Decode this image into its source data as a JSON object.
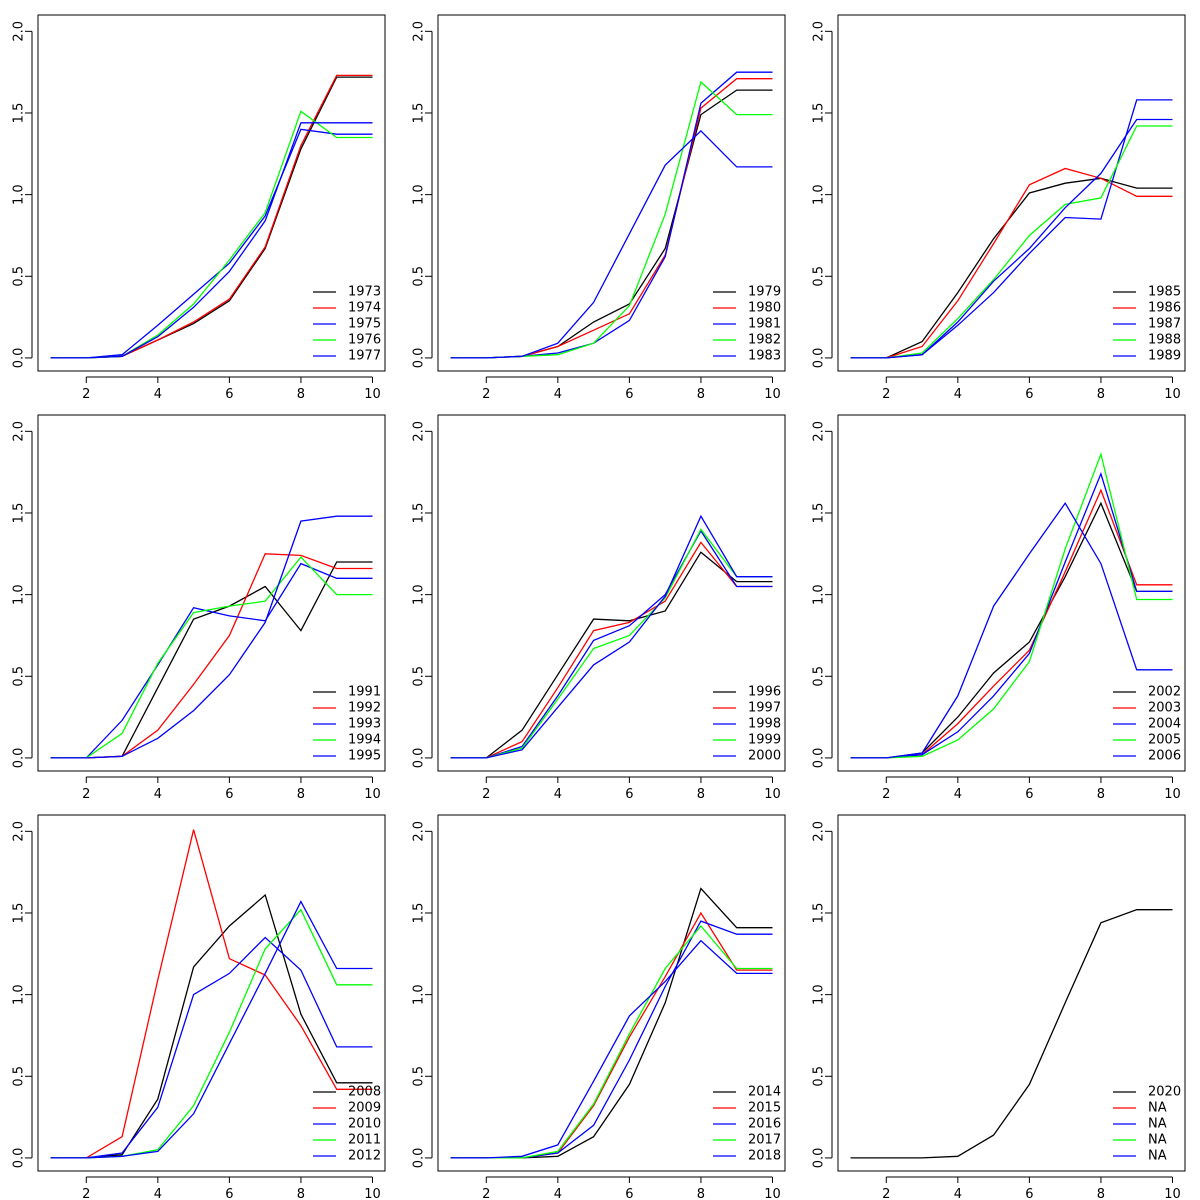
{
  "chart_data": [
    {
      "type": "line",
      "x": [
        1,
        2,
        3,
        4,
        5,
        6,
        7,
        8,
        9,
        10
      ],
      "xlim": [
        0.65,
        10.35
      ],
      "ylim": [
        -0.08,
        2.1
      ],
      "xticks": [
        2,
        4,
        6,
        8,
        10
      ],
      "yticks": [
        0.0,
        0.5,
        1.0,
        1.5,
        2.0
      ],
      "ytick_labels": [
        "0.0",
        "0.5",
        "1.0",
        "1.5",
        "2.0"
      ],
      "grid": false,
      "legend_position": "bottom-right",
      "series": [
        {
          "name": "1973",
          "color": "#000000",
          "values": [
            0,
            0,
            0.01,
            0.11,
            0.21,
            0.35,
            0.67,
            1.28,
            1.72,
            1.72
          ]
        },
        {
          "name": "1974",
          "color": "#ff0000",
          "values": [
            0,
            0,
            0.01,
            0.11,
            0.22,
            0.36,
            0.68,
            1.3,
            1.73,
            1.73
          ]
        },
        {
          "name": "1975",
          "color": "#0000ff",
          "values": [
            0,
            0,
            0.02,
            0.2,
            0.39,
            0.58,
            0.87,
            1.4,
            1.37,
            1.37
          ]
        },
        {
          "name": "1976",
          "color": "#00ff00",
          "values": [
            0,
            0,
            0.01,
            0.14,
            0.33,
            0.6,
            0.89,
            1.51,
            1.35,
            1.35
          ]
        },
        {
          "name": "1977",
          "color": "#0000ff",
          "values": [
            0,
            0,
            0.01,
            0.13,
            0.31,
            0.53,
            0.84,
            1.44,
            1.44,
            1.44
          ]
        }
      ]
    },
    {
      "type": "line",
      "x": [
        1,
        2,
        3,
        4,
        5,
        6,
        7,
        8,
        9,
        10
      ],
      "xlim": [
        0.65,
        10.35
      ],
      "ylim": [
        -0.08,
        2.1
      ],
      "xticks": [
        2,
        4,
        6,
        8,
        10
      ],
      "yticks": [
        0.0,
        0.5,
        1.0,
        1.5,
        2.0
      ],
      "ytick_labels": [
        "0.0",
        "0.5",
        "1.0",
        "1.5",
        "2.0"
      ],
      "grid": false,
      "legend_position": "bottom-right",
      "series": [
        {
          "name": "1979",
          "color": "#000000",
          "values": [
            0,
            0,
            0.01,
            0.07,
            0.22,
            0.33,
            0.67,
            1.49,
            1.64,
            1.64
          ]
        },
        {
          "name": "1980",
          "color": "#ff0000",
          "values": [
            0,
            0,
            0.01,
            0.07,
            0.17,
            0.27,
            0.63,
            1.53,
            1.71,
            1.71
          ]
        },
        {
          "name": "1981",
          "color": "#0000ff",
          "values": [
            0,
            0,
            0.01,
            0.03,
            0.09,
            0.23,
            0.62,
            1.56,
            1.75,
            1.75
          ]
        },
        {
          "name": "1982",
          "color": "#00ff00",
          "values": [
            0,
            0,
            0.01,
            0.02,
            0.09,
            0.32,
            0.88,
            1.69,
            1.49,
            1.49
          ]
        },
        {
          "name": "1983",
          "color": "#0000ff",
          "values": [
            0,
            0,
            0.01,
            0.09,
            0.34,
            0.76,
            1.18,
            1.39,
            1.17,
            1.17
          ]
        }
      ]
    },
    {
      "type": "line",
      "x": [
        1,
        2,
        3,
        4,
        5,
        6,
        7,
        8,
        9,
        10
      ],
      "xlim": [
        0.65,
        10.35
      ],
      "ylim": [
        -0.08,
        2.1
      ],
      "xticks": [
        2,
        4,
        6,
        8,
        10
      ],
      "yticks": [
        0.0,
        0.5,
        1.0,
        1.5,
        2.0
      ],
      "ytick_labels": [
        "0.0",
        "0.5",
        "1.0",
        "1.5",
        "2.0"
      ],
      "grid": false,
      "legend_position": "bottom-right",
      "series": [
        {
          "name": "1985",
          "color": "#000000",
          "values": [
            0,
            0,
            0.1,
            0.4,
            0.73,
            1.01,
            1.07,
            1.1,
            1.04,
            1.04
          ]
        },
        {
          "name": "1986",
          "color": "#ff0000",
          "values": [
            0,
            0,
            0.07,
            0.35,
            0.7,
            1.06,
            1.16,
            1.1,
            0.99,
            0.99
          ]
        },
        {
          "name": "1987",
          "color": "#0000ff",
          "values": [
            0,
            0,
            0.02,
            0.2,
            0.4,
            0.64,
            0.86,
            0.85,
            1.58,
            1.58
          ]
        },
        {
          "name": "1988",
          "color": "#00ff00",
          "values": [
            0,
            0,
            0.03,
            0.24,
            0.48,
            0.75,
            0.94,
            0.98,
            1.42,
            1.42
          ]
        },
        {
          "name": "1989",
          "color": "#0000ff",
          "values": [
            0,
            0,
            0.02,
            0.22,
            0.47,
            0.67,
            0.92,
            1.13,
            1.46,
            1.46
          ]
        }
      ]
    },
    {
      "type": "line",
      "x": [
        1,
        2,
        3,
        4,
        5,
        6,
        7,
        8,
        9,
        10
      ],
      "xlim": [
        0.65,
        10.35
      ],
      "ylim": [
        -0.08,
        2.1
      ],
      "xticks": [
        2,
        4,
        6,
        8,
        10
      ],
      "yticks": [
        0.0,
        0.5,
        1.0,
        1.5,
        2.0
      ],
      "ytick_labels": [
        "0.0",
        "0.5",
        "1.0",
        "1.5",
        "2.0"
      ],
      "grid": false,
      "legend_position": "bottom-right",
      "series": [
        {
          "name": "1991",
          "color": "#000000",
          "values": [
            0,
            0,
            0.01,
            0.43,
            0.85,
            0.93,
            1.05,
            0.78,
            1.2,
            1.2
          ]
        },
        {
          "name": "1992",
          "color": "#ff0000",
          "values": [
            0,
            0,
            0.01,
            0.17,
            0.45,
            0.75,
            1.25,
            1.24,
            1.16,
            1.16
          ]
        },
        {
          "name": "1993",
          "color": "#0000ff",
          "values": [
            0,
            0,
            0.23,
            0.57,
            0.92,
            0.87,
            0.84,
            1.19,
            1.1,
            1.1
          ]
        },
        {
          "name": "1994",
          "color": "#00ff00",
          "values": [
            0,
            0,
            0.15,
            0.58,
            0.89,
            0.93,
            0.96,
            1.23,
            1.0,
            1.0
          ]
        },
        {
          "name": "1995",
          "color": "#0000ff",
          "values": [
            0,
            0,
            0.01,
            0.12,
            0.29,
            0.51,
            0.83,
            1.45,
            1.48,
            1.48
          ]
        }
      ]
    },
    {
      "type": "line",
      "x": [
        1,
        2,
        3,
        4,
        5,
        6,
        7,
        8,
        9,
        10
      ],
      "xlim": [
        0.65,
        10.35
      ],
      "ylim": [
        -0.08,
        2.1
      ],
      "xticks": [
        2,
        4,
        6,
        8,
        10
      ],
      "yticks": [
        0.0,
        0.5,
        1.0,
        1.5,
        2.0
      ],
      "ytick_labels": [
        "0.0",
        "0.5",
        "1.0",
        "1.5",
        "2.0"
      ],
      "grid": false,
      "legend_position": "bottom-right",
      "series": [
        {
          "name": "1996",
          "color": "#000000",
          "values": [
            0,
            0,
            0.17,
            0.51,
            0.85,
            0.84,
            0.9,
            1.26,
            1.08,
            1.08
          ]
        },
        {
          "name": "1997",
          "color": "#ff0000",
          "values": [
            0,
            0,
            0.1,
            0.43,
            0.78,
            0.83,
            0.96,
            1.32,
            1.05,
            1.05
          ]
        },
        {
          "name": "1998",
          "color": "#0000ff",
          "values": [
            0,
            0,
            0.07,
            0.38,
            0.72,
            0.81,
            1.0,
            1.39,
            1.05,
            1.05
          ]
        },
        {
          "name": "1999",
          "color": "#00ff00",
          "values": [
            0,
            0,
            0.06,
            0.36,
            0.67,
            0.75,
            0.98,
            1.4,
            1.11,
            1.11
          ]
        },
        {
          "name": "2000",
          "color": "#0000ff",
          "values": [
            0,
            0,
            0.05,
            0.31,
            0.57,
            0.71,
            0.99,
            1.48,
            1.11,
            1.11
          ]
        }
      ]
    },
    {
      "type": "line",
      "x": [
        1,
        2,
        3,
        4,
        5,
        6,
        7,
        8,
        9,
        10
      ],
      "xlim": [
        0.65,
        10.35
      ],
      "ylim": [
        -0.08,
        2.1
      ],
      "xticks": [
        2,
        4,
        6,
        8,
        10
      ],
      "yticks": [
        0.0,
        0.5,
        1.0,
        1.5,
        2.0
      ],
      "ytick_labels": [
        "0.0",
        "0.5",
        "1.0",
        "1.5",
        "2.0"
      ],
      "grid": false,
      "legend_position": "bottom-right",
      "series": [
        {
          "name": "2002",
          "color": "#000000",
          "values": [
            0,
            0,
            0.03,
            0.25,
            0.52,
            0.71,
            1.11,
            1.56,
            1.02,
            1.02
          ]
        },
        {
          "name": "2003",
          "color": "#ff0000",
          "values": [
            0,
            0,
            0.02,
            0.21,
            0.44,
            0.66,
            1.14,
            1.64,
            1.06,
            1.06
          ]
        },
        {
          "name": "2004",
          "color": "#0000ff",
          "values": [
            0,
            0,
            0.02,
            0.16,
            0.38,
            0.64,
            1.2,
            1.74,
            1.02,
            1.02
          ]
        },
        {
          "name": "2005",
          "color": "#00ff00",
          "values": [
            0,
            0,
            0.01,
            0.11,
            0.3,
            0.59,
            1.28,
            1.86,
            0.97,
            0.97
          ]
        },
        {
          "name": "2006",
          "color": "#0000ff",
          "values": [
            0,
            0,
            0.03,
            0.38,
            0.93,
            1.25,
            1.56,
            1.19,
            0.54,
            0.54
          ]
        }
      ]
    },
    {
      "type": "line",
      "x": [
        1,
        2,
        3,
        4,
        5,
        6,
        7,
        8,
        9,
        10
      ],
      "xlim": [
        0.65,
        10.35
      ],
      "ylim": [
        -0.08,
        2.1
      ],
      "xticks": [
        2,
        4,
        6,
        8,
        10
      ],
      "yticks": [
        0.0,
        0.5,
        1.0,
        1.5,
        2.0
      ],
      "ytick_labels": [
        "0.0",
        "0.5",
        "1.0",
        "1.5",
        "2.0"
      ],
      "grid": false,
      "legend_position": "bottom-right",
      "series": [
        {
          "name": "2008",
          "color": "#000000",
          "values": [
            0,
            0,
            0.02,
            0.36,
            1.17,
            1.42,
            1.61,
            0.88,
            0.46,
            0.46
          ]
        },
        {
          "name": "2009",
          "color": "#ff0000",
          "values": [
            0,
            0,
            0.13,
            1.09,
            2.01,
            1.22,
            1.12,
            0.81,
            0.42,
            0.42
          ]
        },
        {
          "name": "2010",
          "color": "#0000ff",
          "values": [
            0,
            0,
            0.03,
            0.31,
            1.0,
            1.13,
            1.35,
            1.15,
            0.68,
            0.68
          ]
        },
        {
          "name": "2011",
          "color": "#00ff00",
          "values": [
            0,
            0,
            0.01,
            0.05,
            0.32,
            0.77,
            1.28,
            1.52,
            1.06,
            1.06
          ]
        },
        {
          "name": "2012",
          "color": "#0000ff",
          "values": [
            0,
            0,
            0.01,
            0.04,
            0.27,
            0.7,
            1.13,
            1.57,
            1.16,
            1.16
          ]
        }
      ]
    },
    {
      "type": "line",
      "x": [
        1,
        2,
        3,
        4,
        5,
        6,
        7,
        8,
        9,
        10
      ],
      "xlim": [
        0.65,
        10.35
      ],
      "ylim": [
        -0.08,
        2.1
      ],
      "xticks": [
        2,
        4,
        6,
        8,
        10
      ],
      "yticks": [
        0.0,
        0.5,
        1.0,
        1.5,
        2.0
      ],
      "ytick_labels": [
        "0.0",
        "0.5",
        "1.0",
        "1.5",
        "2.0"
      ],
      "grid": false,
      "legend_position": "bottom-right",
      "series": [
        {
          "name": "2014",
          "color": "#000000",
          "values": [
            0,
            0,
            0.0,
            0.01,
            0.13,
            0.45,
            0.95,
            1.65,
            1.41,
            1.41
          ]
        },
        {
          "name": "2015",
          "color": "#ff0000",
          "values": [
            0,
            0,
            0.0,
            0.03,
            0.32,
            0.74,
            1.11,
            1.5,
            1.15,
            1.15
          ]
        },
        {
          "name": "2016",
          "color": "#0000ff",
          "values": [
            0,
            0,
            0.0,
            0.03,
            0.2,
            0.6,
            1.05,
            1.45,
            1.37,
            1.37
          ]
        },
        {
          "name": "2017",
          "color": "#00ff00",
          "values": [
            0,
            0,
            0.0,
            0.04,
            0.33,
            0.76,
            1.16,
            1.42,
            1.16,
            1.16
          ]
        },
        {
          "name": "2018",
          "color": "#0000ff",
          "values": [
            0,
            0,
            0.01,
            0.08,
            0.47,
            0.87,
            1.08,
            1.33,
            1.13,
            1.13
          ]
        }
      ]
    },
    {
      "type": "line",
      "x": [
        1,
        2,
        3,
        4,
        5,
        6,
        7,
        8,
        9,
        10
      ],
      "xlim": [
        0.65,
        10.35
      ],
      "ylim": [
        -0.08,
        2.1
      ],
      "xticks": [
        2,
        4,
        6,
        8,
        10
      ],
      "yticks": [
        0.0,
        0.5,
        1.0,
        1.5,
        2.0
      ],
      "ytick_labels": [
        "0.0",
        "0.5",
        "1.0",
        "1.5",
        "2.0"
      ],
      "grid": false,
      "legend_position": "bottom-right",
      "series": [
        {
          "name": "2020",
          "color": "#000000",
          "values": [
            0,
            0,
            0.0,
            0.01,
            0.14,
            0.45,
            0.95,
            1.44,
            1.52,
            1.52
          ]
        }
      ],
      "legend_entries": [
        {
          "label": "2020",
          "color": "#000000"
        },
        {
          "label": "NA",
          "color": "#ff0000"
        },
        {
          "label": "NA",
          "color": "#0000ff"
        },
        {
          "label": "NA",
          "color": "#00ff00"
        },
        {
          "label": "NA",
          "color": "#0000ff"
        }
      ]
    }
  ]
}
